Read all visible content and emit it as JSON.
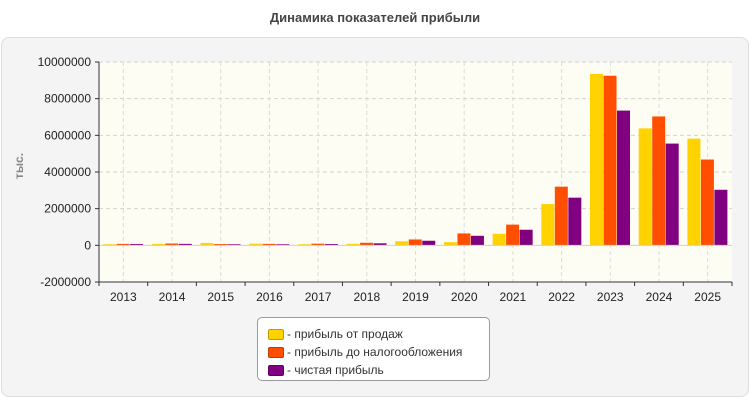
{
  "title": "Динамика показателей прибыли",
  "chart_data": {
    "type": "bar",
    "title": "Динамика показателей прибыли",
    "ylabel": "тыс.",
    "xlabel": "",
    "ylim": [
      -2000000,
      10000000
    ],
    "yticks": [
      -2000000,
      0,
      2000000,
      4000000,
      6000000,
      8000000,
      10000000
    ],
    "ytick_labels": [
      "-2000000",
      "0",
      "2000000",
      "4000000",
      "6000000",
      "8000000",
      "10000000"
    ],
    "grid": true,
    "legend_position": "bottom",
    "categories": [
      "2013",
      "2014",
      "2015",
      "2016",
      "2017",
      "2018",
      "2019",
      "2020",
      "2021",
      "2022",
      "2023",
      "2024",
      "2025"
    ],
    "series": [
      {
        "name": "- прибыль от продаж",
        "color": "#FFD200",
        "values": [
          60000,
          80000,
          130000,
          90000,
          60000,
          80000,
          220000,
          170000,
          630000,
          2250000,
          9350000,
          6380000,
          5820000
        ]
      },
      {
        "name": "- прибыль до налогообложения",
        "color": "#FF4E00",
        "values": [
          80000,
          100000,
          70000,
          80000,
          90000,
          140000,
          320000,
          650000,
          1130000,
          3200000,
          9250000,
          7030000,
          4680000
        ]
      },
      {
        "name": "- чистая прибыль",
        "color": "#800080",
        "values": [
          70000,
          80000,
          60000,
          60000,
          70000,
          110000,
          250000,
          520000,
          850000,
          2600000,
          7350000,
          5550000,
          3030000
        ]
      }
    ]
  }
}
